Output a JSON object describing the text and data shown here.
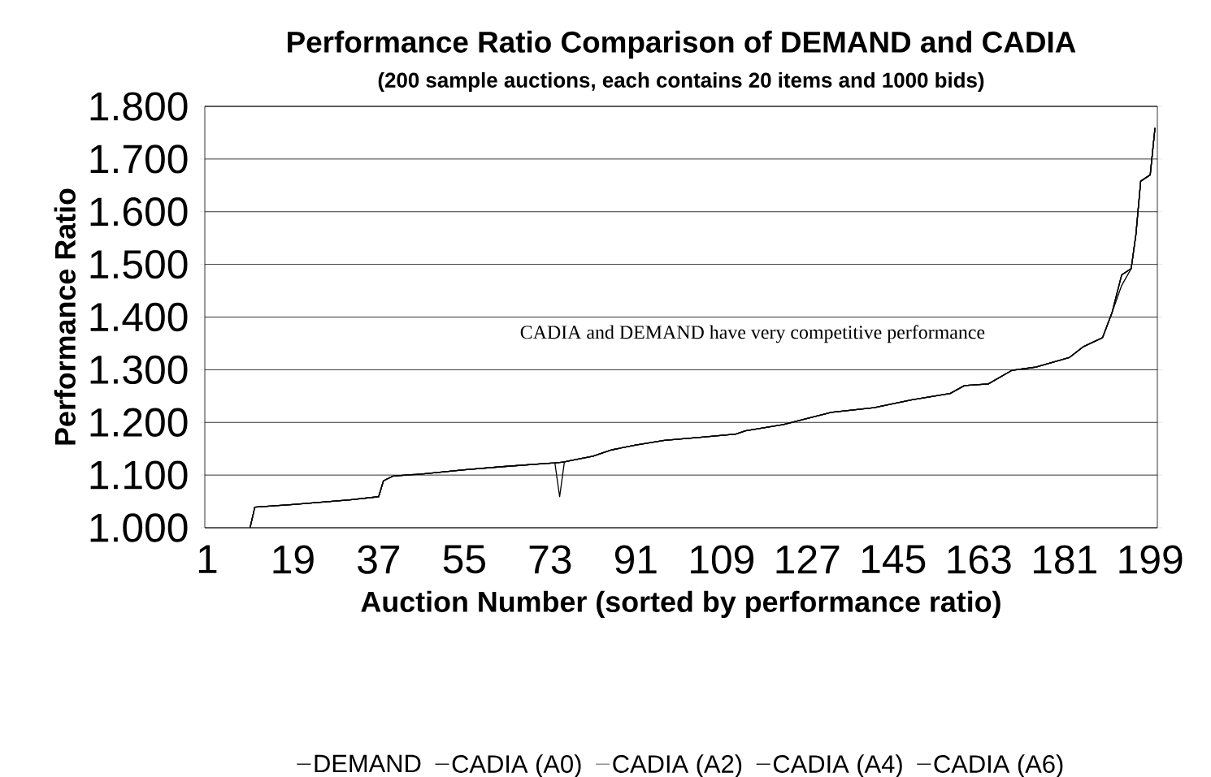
{
  "chart_data": {
    "type": "line",
    "title": "Performance Ratio Comparison of DEMAND and CADIA",
    "subtitle": "(200 sample auctions, each contains 20 items and 1000 bids)",
    "xlabel": "Auction Number (sorted by performance ratio)",
    "ylabel": "Performance Ratio",
    "annotations": [
      "CADIA and DEMAND have very competitive performance"
    ],
    "x": [
      10,
      11,
      19,
      31,
      37,
      38,
      40,
      46,
      55,
      63,
      72,
      74,
      75,
      76,
      77,
      82,
      86,
      91,
      97,
      105,
      112,
      114,
      122,
      128,
      132,
      141,
      149,
      157,
      160,
      165,
      170,
      175,
      182,
      185,
      189,
      191,
      193,
      195,
      196,
      197,
      199,
      200
    ],
    "series": [
      {
        "name": "DEMAND",
        "color": "#000000",
        "values": [
          1.0,
          1.039,
          1.044,
          1.053,
          1.059,
          1.089,
          1.098,
          1.102,
          1.11,
          1.116,
          1.122,
          1.123,
          1.124,
          1.125,
          1.127,
          1.136,
          1.148,
          1.157,
          1.166,
          1.172,
          1.178,
          1.184,
          1.196,
          1.21,
          1.219,
          1.228,
          1.243,
          1.255,
          1.27,
          1.273,
          1.299,
          1.305,
          1.323,
          1.344,
          1.361,
          1.409,
          1.48,
          1.492,
          1.557,
          1.658,
          1.67,
          1.759
        ]
      },
      {
        "name": "CADIA (A0)",
        "color": "#000000",
        "values": [
          1.0,
          1.039,
          1.044,
          1.053,
          1.059,
          1.089,
          1.098,
          1.102,
          1.11,
          1.116,
          1.122,
          1.123,
          1.059,
          1.125,
          1.127,
          1.136,
          1.148,
          1.157,
          1.166,
          1.172,
          1.178,
          1.184,
          1.196,
          1.21,
          1.219,
          1.228,
          1.243,
          1.255,
          1.27,
          1.273,
          1.299,
          1.305,
          1.323,
          1.344,
          1.361,
          1.409,
          1.46,
          1.492,
          1.557,
          1.658,
          1.67,
          1.759
        ]
      },
      {
        "name": "CADIA (A2)",
        "color": "#808080",
        "values": [
          1.0,
          1.039,
          1.044,
          1.053,
          1.059,
          1.089,
          1.098,
          1.102,
          1.11,
          1.116,
          1.122,
          1.123,
          1.124,
          1.125,
          1.127,
          1.136,
          1.148,
          1.157,
          1.166,
          1.172,
          1.178,
          1.184,
          1.196,
          1.21,
          1.219,
          1.228,
          1.243,
          1.255,
          1.27,
          1.273,
          1.299,
          1.305,
          1.323,
          1.344,
          1.361,
          1.409,
          1.48,
          1.492,
          1.557,
          1.658,
          1.67,
          1.759
        ]
      },
      {
        "name": "CADIA (A4)",
        "color": "#000000",
        "values": [
          1.0,
          1.039,
          1.044,
          1.053,
          1.059,
          1.089,
          1.098,
          1.102,
          1.11,
          1.116,
          1.122,
          1.123,
          1.124,
          1.125,
          1.127,
          1.136,
          1.148,
          1.157,
          1.166,
          1.172,
          1.178,
          1.184,
          1.196,
          1.21,
          1.219,
          1.228,
          1.243,
          1.255,
          1.27,
          1.273,
          1.299,
          1.305,
          1.323,
          1.344,
          1.361,
          1.409,
          1.48,
          1.492,
          1.557,
          1.658,
          1.67,
          1.759
        ]
      },
      {
        "name": "CADIA (A6)",
        "color": "#000000",
        "values": [
          1.0,
          1.039,
          1.044,
          1.053,
          1.059,
          1.089,
          1.098,
          1.102,
          1.11,
          1.116,
          1.122,
          1.123,
          1.124,
          1.125,
          1.127,
          1.136,
          1.148,
          1.157,
          1.166,
          1.172,
          1.178,
          1.184,
          1.196,
          1.21,
          1.219,
          1.228,
          1.243,
          1.255,
          1.27,
          1.273,
          1.299,
          1.305,
          1.323,
          1.344,
          1.361,
          1.409,
          1.48,
          1.492,
          1.557,
          1.658,
          1.67,
          1.759
        ]
      }
    ],
    "xlim": [
      0.5,
      200.5
    ],
    "xticks": [
      1,
      19,
      37,
      55,
      73,
      91,
      109,
      127,
      145,
      163,
      181,
      199
    ],
    "ylim": [
      1.0,
      1.8
    ],
    "yticks": [
      {
        "value": 1.0,
        "label": "1.000"
      },
      {
        "value": 1.1,
        "label": "1.100"
      },
      {
        "value": 1.2,
        "label": "1.200"
      },
      {
        "value": 1.3,
        "label": "1.300"
      },
      {
        "value": 1.4,
        "label": "1.400"
      },
      {
        "value": 1.5,
        "label": "1.500"
      },
      {
        "value": 1.6,
        "label": "1.600"
      },
      {
        "value": 1.7,
        "label": "1.700"
      },
      {
        "value": 1.8,
        "label": "1.800"
      }
    ],
    "grid": "y",
    "legend": "bottom",
    "marker": "none",
    "line_style": "solid"
  }
}
